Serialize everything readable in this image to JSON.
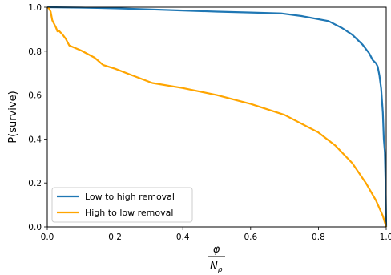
{
  "chart_data": {
    "type": "line",
    "xlabel_numerator": "φ",
    "xlabel_denominator_base": "N",
    "xlabel_denominator_sub": "ρ",
    "ylabel": "P(survive)",
    "xlim": [
      0,
      1
    ],
    "ylim": [
      0,
      1
    ],
    "xticks": [
      "0.0",
      "0.2",
      "0.4",
      "0.6",
      "0.8",
      "1.0"
    ],
    "yticks": [
      "0.0",
      "0.2",
      "0.4",
      "0.6",
      "0.8",
      "1.0"
    ],
    "grid": false,
    "legend_position": "lower-left",
    "series": [
      {
        "name": "Low to high removal",
        "color": "#1f77b4",
        "points": [
          [
            0,
            1.0
          ],
          [
            0.1,
            0.998
          ],
          [
            0.2,
            0.995
          ],
          [
            0.3,
            0.99
          ],
          [
            0.4,
            0.985
          ],
          [
            0.5,
            0.98
          ],
          [
            0.6,
            0.976
          ],
          [
            0.69,
            0.972
          ],
          [
            0.75,
            0.96
          ],
          [
            0.83,
            0.937
          ],
          [
            0.87,
            0.905
          ],
          [
            0.9,
            0.875
          ],
          [
            0.93,
            0.83
          ],
          [
            0.95,
            0.79
          ],
          [
            0.96,
            0.76
          ],
          [
            0.97,
            0.745
          ],
          [
            0.975,
            0.73
          ],
          [
            0.98,
            0.69
          ],
          [
            0.985,
            0.63
          ],
          [
            0.99,
            0.52
          ],
          [
            0.993,
            0.4
          ],
          [
            0.996,
            0.34
          ],
          [
            0.998,
            0.2
          ],
          [
            1.0,
            0.0
          ]
        ]
      },
      {
        "name": "High to low removal",
        "color": "#ffa500",
        "points": [
          [
            0,
            1.0
          ],
          [
            0.005,
            0.995
          ],
          [
            0.01,
            0.98
          ],
          [
            0.015,
            0.94
          ],
          [
            0.025,
            0.91
          ],
          [
            0.03,
            0.89
          ],
          [
            0.035,
            0.892
          ],
          [
            0.045,
            0.876
          ],
          [
            0.055,
            0.855
          ],
          [
            0.065,
            0.826
          ],
          [
            0.1,
            0.803
          ],
          [
            0.14,
            0.77
          ],
          [
            0.165,
            0.737
          ],
          [
            0.2,
            0.72
          ],
          [
            0.25,
            0.69
          ],
          [
            0.31,
            0.655
          ],
          [
            0.4,
            0.632
          ],
          [
            0.5,
            0.6
          ],
          [
            0.6,
            0.56
          ],
          [
            0.7,
            0.51
          ],
          [
            0.8,
            0.43
          ],
          [
            0.85,
            0.37
          ],
          [
            0.9,
            0.29
          ],
          [
            0.94,
            0.2
          ],
          [
            0.97,
            0.12
          ],
          [
            0.99,
            0.05
          ],
          [
            1.0,
            0.0
          ]
        ]
      }
    ]
  }
}
